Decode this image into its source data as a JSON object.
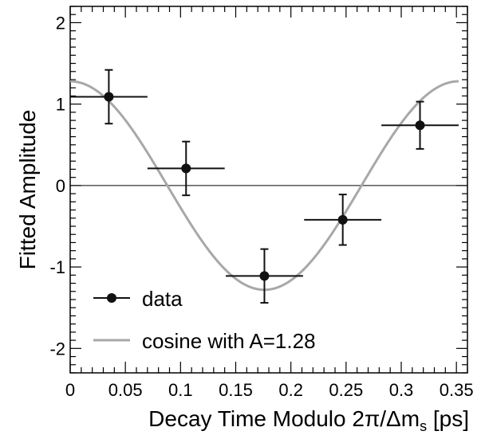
{
  "chart_data": {
    "type": "scatter",
    "xlabel_main": "Decay Time Modulo 2π/Δm",
    "xlabel_sub": "s",
    "xlabel_unit": " [ps]",
    "ylabel": "Fitted Amplitude",
    "xlim": [
      0,
      0.36
    ],
    "ylim": [
      -2.3,
      2.2
    ],
    "x_ticks": [
      0,
      0.05,
      0.1,
      0.15,
      0.2,
      0.25,
      0.3,
      0.35
    ],
    "x_tick_labels": [
      "0",
      "0.05",
      "0.1",
      "0.15",
      "0.2",
      "0.25",
      "0.3",
      "0.35"
    ],
    "y_ticks": [
      -2,
      -1,
      0,
      1,
      2
    ],
    "y_tick_labels": [
      "-2",
      "-1",
      "0",
      "1",
      "2"
    ],
    "zero_line": true,
    "series": [
      {
        "name": "data",
        "type": "points_with_errors",
        "color": "#111111",
        "points": [
          {
            "x": 0.035,
            "y": 1.09,
            "xerr": 0.035,
            "yerr": 0.33
          },
          {
            "x": 0.105,
            "y": 0.21,
            "xerr": 0.035,
            "yerr": 0.33
          },
          {
            "x": 0.176,
            "y": -1.11,
            "xerr": 0.035,
            "yerr": 0.33
          },
          {
            "x": 0.247,
            "y": -0.42,
            "xerr": 0.035,
            "yerr": 0.31
          },
          {
            "x": 0.317,
            "y": 0.74,
            "xerr": 0.035,
            "yerr": 0.29
          }
        ]
      },
      {
        "name": "cosine with A=1.28",
        "type": "curve",
        "color": "#a8a8a8",
        "amplitude": 1.28,
        "period": 0.352,
        "x_range": [
          0,
          0.352
        ]
      }
    ],
    "legend_position": "bottom-left"
  }
}
